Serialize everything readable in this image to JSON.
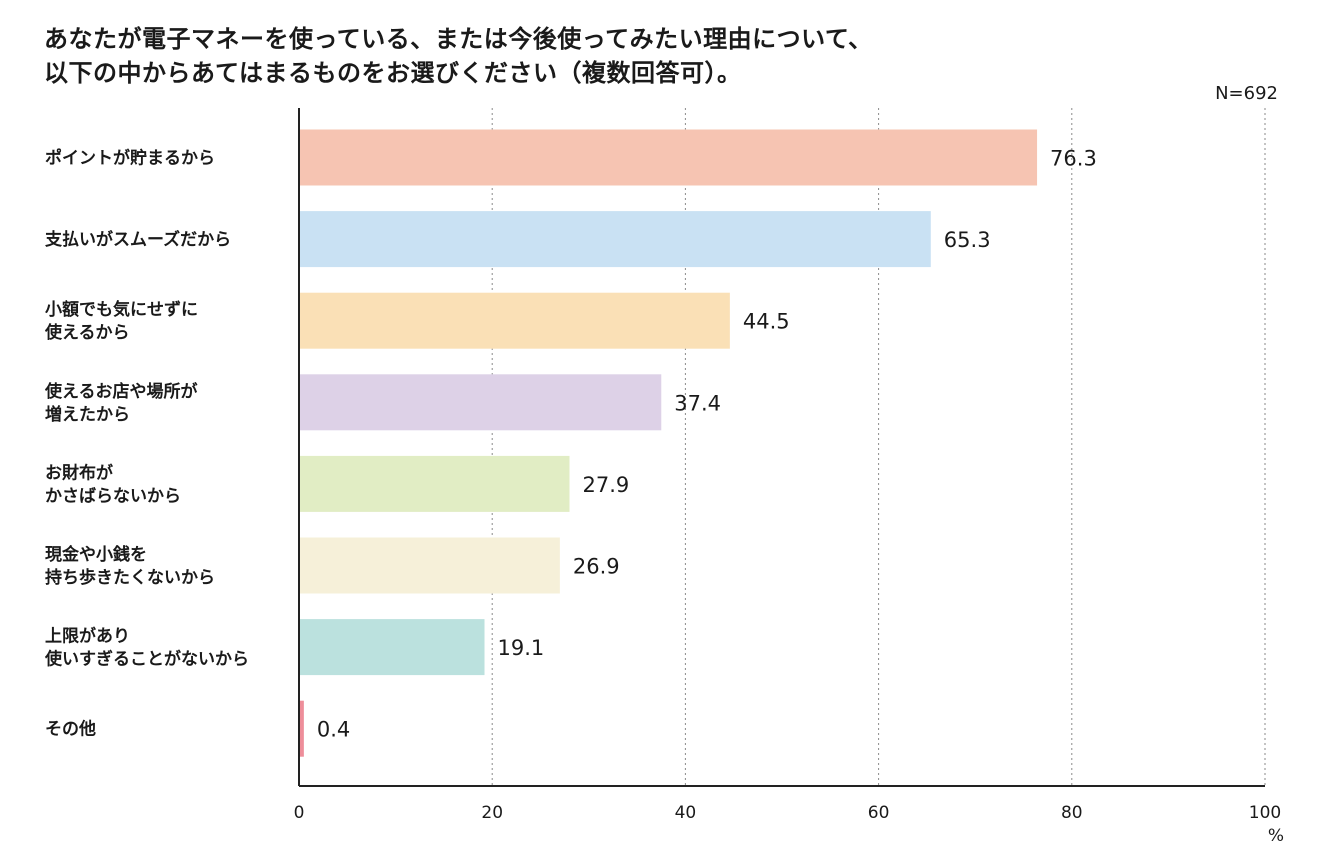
{
  "chart_data": {
    "type": "bar",
    "orientation": "horizontal",
    "title_lines": [
      "あなたが電子マネーを使っている、または今後使ってみたい理由について、",
      "以下の中からあてはまるものをお選びください（複数回答可）。"
    ],
    "note": "N=692",
    "categories": [
      [
        "ポイントが貯まるから"
      ],
      [
        "支払いがスムーズだから"
      ],
      [
        "小額でも気にせずに",
        "使えるから"
      ],
      [
        "使えるお店や場所が",
        "増えたから"
      ],
      [
        "お財布が",
        "かさばらないから"
      ],
      [
        "現金や小銭を",
        "持ち歩きたくないから"
      ],
      [
        "上限があり",
        "使いすぎることがないから"
      ],
      [
        "その他"
      ]
    ],
    "values": [
      76.3,
      65.3,
      44.5,
      37.4,
      27.9,
      26.9,
      19.1,
      0.4
    ],
    "value_labels": [
      "76.3",
      "65.3",
      "44.5",
      "37.4",
      "27.9",
      "26.9",
      "19.1",
      "0.4"
    ],
    "colors": [
      "#F6C4B2",
      "#C9E1F3",
      "#FAE0B6",
      "#DDD1E7",
      "#E1EDC4",
      "#F6F0D9",
      "#BBE1DE",
      "#EE8E9A"
    ],
    "xlim": [
      0,
      100
    ],
    "xticks": [
      "0",
      "20",
      "40",
      "60",
      "80",
      "100"
    ],
    "xunit": "%",
    "grid": "vertical-dotted"
  }
}
